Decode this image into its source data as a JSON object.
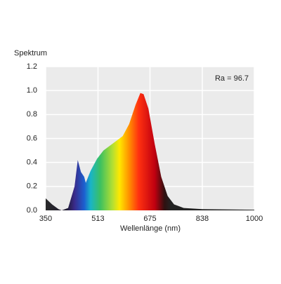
{
  "chart_data": {
    "type": "area",
    "y_label": "Spektrum",
    "x_label": "Wellenlänge (nm)",
    "annotation": "Ra = 96.7",
    "x": [
      350,
      370,
      390,
      400,
      420,
      440,
      450,
      460,
      470,
      475,
      490,
      510,
      530,
      560,
      590,
      610,
      630,
      645,
      655,
      670,
      690,
      710,
      730,
      750,
      780,
      838,
      1000
    ],
    "values": [
      0.1,
      0.05,
      0.01,
      0.0,
      0.02,
      0.2,
      0.42,
      0.32,
      0.28,
      0.23,
      0.33,
      0.43,
      0.5,
      0.56,
      0.62,
      0.72,
      0.88,
      0.98,
      0.97,
      0.85,
      0.55,
      0.28,
      0.12,
      0.05,
      0.02,
      0.01,
      0.005
    ],
    "xlim": [
      350,
      1000
    ],
    "xticks": [
      350,
      513,
      675,
      838,
      1000
    ],
    "ylim": [
      0,
      1.2
    ],
    "yticks": [
      {
        "value": 0,
        "label": "0.0"
      },
      {
        "value": 0.2,
        "label": "0.2"
      },
      {
        "value": 0.4,
        "label": "0.4"
      },
      {
        "value": 0.6,
        "label": "0.6"
      },
      {
        "value": 0.8,
        "label": "0.8"
      },
      {
        "value": 1,
        "label": "1.0"
      },
      {
        "value": 1.2,
        "label": "1.2"
      }
    ],
    "grid": true
  }
}
